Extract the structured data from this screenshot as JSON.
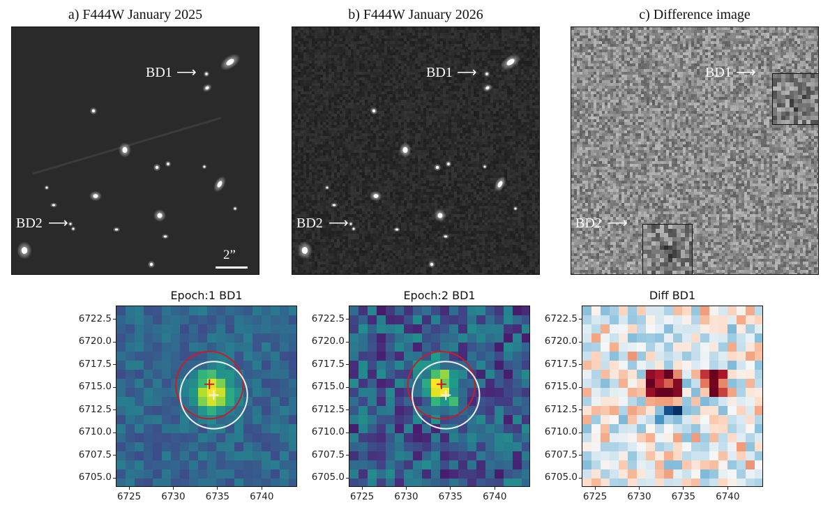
{
  "top_panels": [
    {
      "title": "a) F444W January 2025",
      "bd1_label": "BD1",
      "bd2_label": "BD2",
      "scale_label": "2”"
    },
    {
      "title": "b) F444W January 2026",
      "bd1_label": "BD1",
      "bd2_label": "BD2"
    },
    {
      "title": "c) Difference image",
      "bd1_label": "BD1",
      "bd2_label": "BD2"
    }
  ],
  "chart_data": [
    {
      "type": "heatmap",
      "title": "Epoch:1 BD1",
      "x_ticks": [
        "6725",
        "6730",
        "6735",
        "6740"
      ],
      "y_ticks": [
        "6722.5",
        "6720.0",
        "6717.5",
        "6715.0",
        "6712.5",
        "6710.0",
        "6707.5",
        "6705.0"
      ],
      "xlim": [
        6723.5,
        6744
      ],
      "ylim": [
        6704,
        6724
      ],
      "colormap": "viridis",
      "source_peak": [
        6734.3,
        6714.5
      ],
      "red_marker": [
        6734.0,
        6715.4
      ],
      "white_marker": [
        6734.5,
        6714.2
      ],
      "red_circle_center": [
        6734.0,
        6715.3
      ],
      "red_circle_radius": 3.8,
      "white_circle_center": [
        6734.5,
        6714.2
      ],
      "white_circle_radius": 3.8,
      "colors": {
        "red": "#c81d25",
        "white": "#f2f2f2"
      }
    },
    {
      "type": "heatmap",
      "title": "Epoch:2 BD1",
      "x_ticks": [
        "6725",
        "6730",
        "6735",
        "6740"
      ],
      "y_ticks": [
        "6722.5",
        "6720.0",
        "6717.5",
        "6715.0",
        "6712.5",
        "6710.0",
        "6707.5",
        "6705.0"
      ],
      "xlim": [
        6723.5,
        6744
      ],
      "ylim": [
        6704,
        6724
      ],
      "colormap": "viridis",
      "source_peak": [
        6733.8,
        6715.2
      ],
      "red_marker": [
        6733.9,
        6715.4
      ],
      "white_marker": [
        6734.4,
        6714.2
      ],
      "red_circle_center": [
        6733.9,
        6715.3
      ],
      "red_circle_radius": 3.8,
      "white_circle_center": [
        6734.4,
        6714.2
      ],
      "white_circle_radius": 3.8,
      "colors": {
        "red": "#c81d25",
        "white": "#f2f2f2"
      }
    },
    {
      "type": "heatmap",
      "title": "Diff BD1",
      "x_ticks": [
        "6725",
        "6730",
        "6735",
        "6740"
      ],
      "y_ticks": [
        "6722.5",
        "6720.0",
        "6717.5",
        "6715.0",
        "6712.5",
        "6710.0",
        "6707.5",
        "6705.0"
      ],
      "xlim": [
        6723.5,
        6744
      ],
      "ylim": [
        6704,
        6724
      ],
      "colormap": "RdBu_r"
    }
  ]
}
